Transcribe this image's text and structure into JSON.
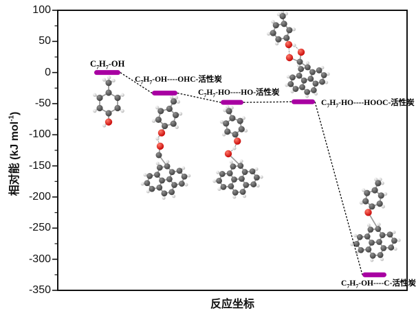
{
  "figure": {
    "background": "#ffffff",
    "frame_color": "#111111"
  },
  "chart_data": {
    "type": "energy_level_diagram",
    "title": "",
    "xlabel": "反应坐标",
    "ylabel": "相对能 (kJ mol^-1^)",
    "ylim": [
      -350,
      100
    ],
    "yticks": [
      100,
      50,
      0,
      -50,
      -100,
      -150,
      -200,
      -250,
      -300,
      -350
    ],
    "minor_tick_step": 25,
    "grid": false,
    "legend": "none",
    "level_color": "#A800A2",
    "connector_color": "#000000",
    "levels": [
      {
        "label": "C~7~H~7~-OH",
        "energy": 0
      },
      {
        "label": "C~7~H~7~-OH----OHC-活性炭",
        "energy": -33
      },
      {
        "label": "C~7~H~7~-HO----HO-活性炭",
        "energy": -48
      },
      {
        "label": "C~7~H~7~-HO----HOOC-活性炭",
        "energy": -47
      },
      {
        "label": "C~7~H~7~-OH----C-活性炭",
        "energy": -325
      }
    ]
  },
  "molecules": [
    {
      "name": "p-cresol-molecule"
    },
    {
      "name": "cresol-OHC-activated-carbon-complex"
    },
    {
      "name": "cresol-HO-activated-carbon-complex"
    },
    {
      "name": "cresol-HOOC-activated-carbon-complex"
    },
    {
      "name": "cresol-C-activated-carbon-complex"
    }
  ],
  "atom_colors": {
    "carbon": "#4a4a4a",
    "hydrogen": "#d9d9d9",
    "oxygen": "#dd1100"
  }
}
